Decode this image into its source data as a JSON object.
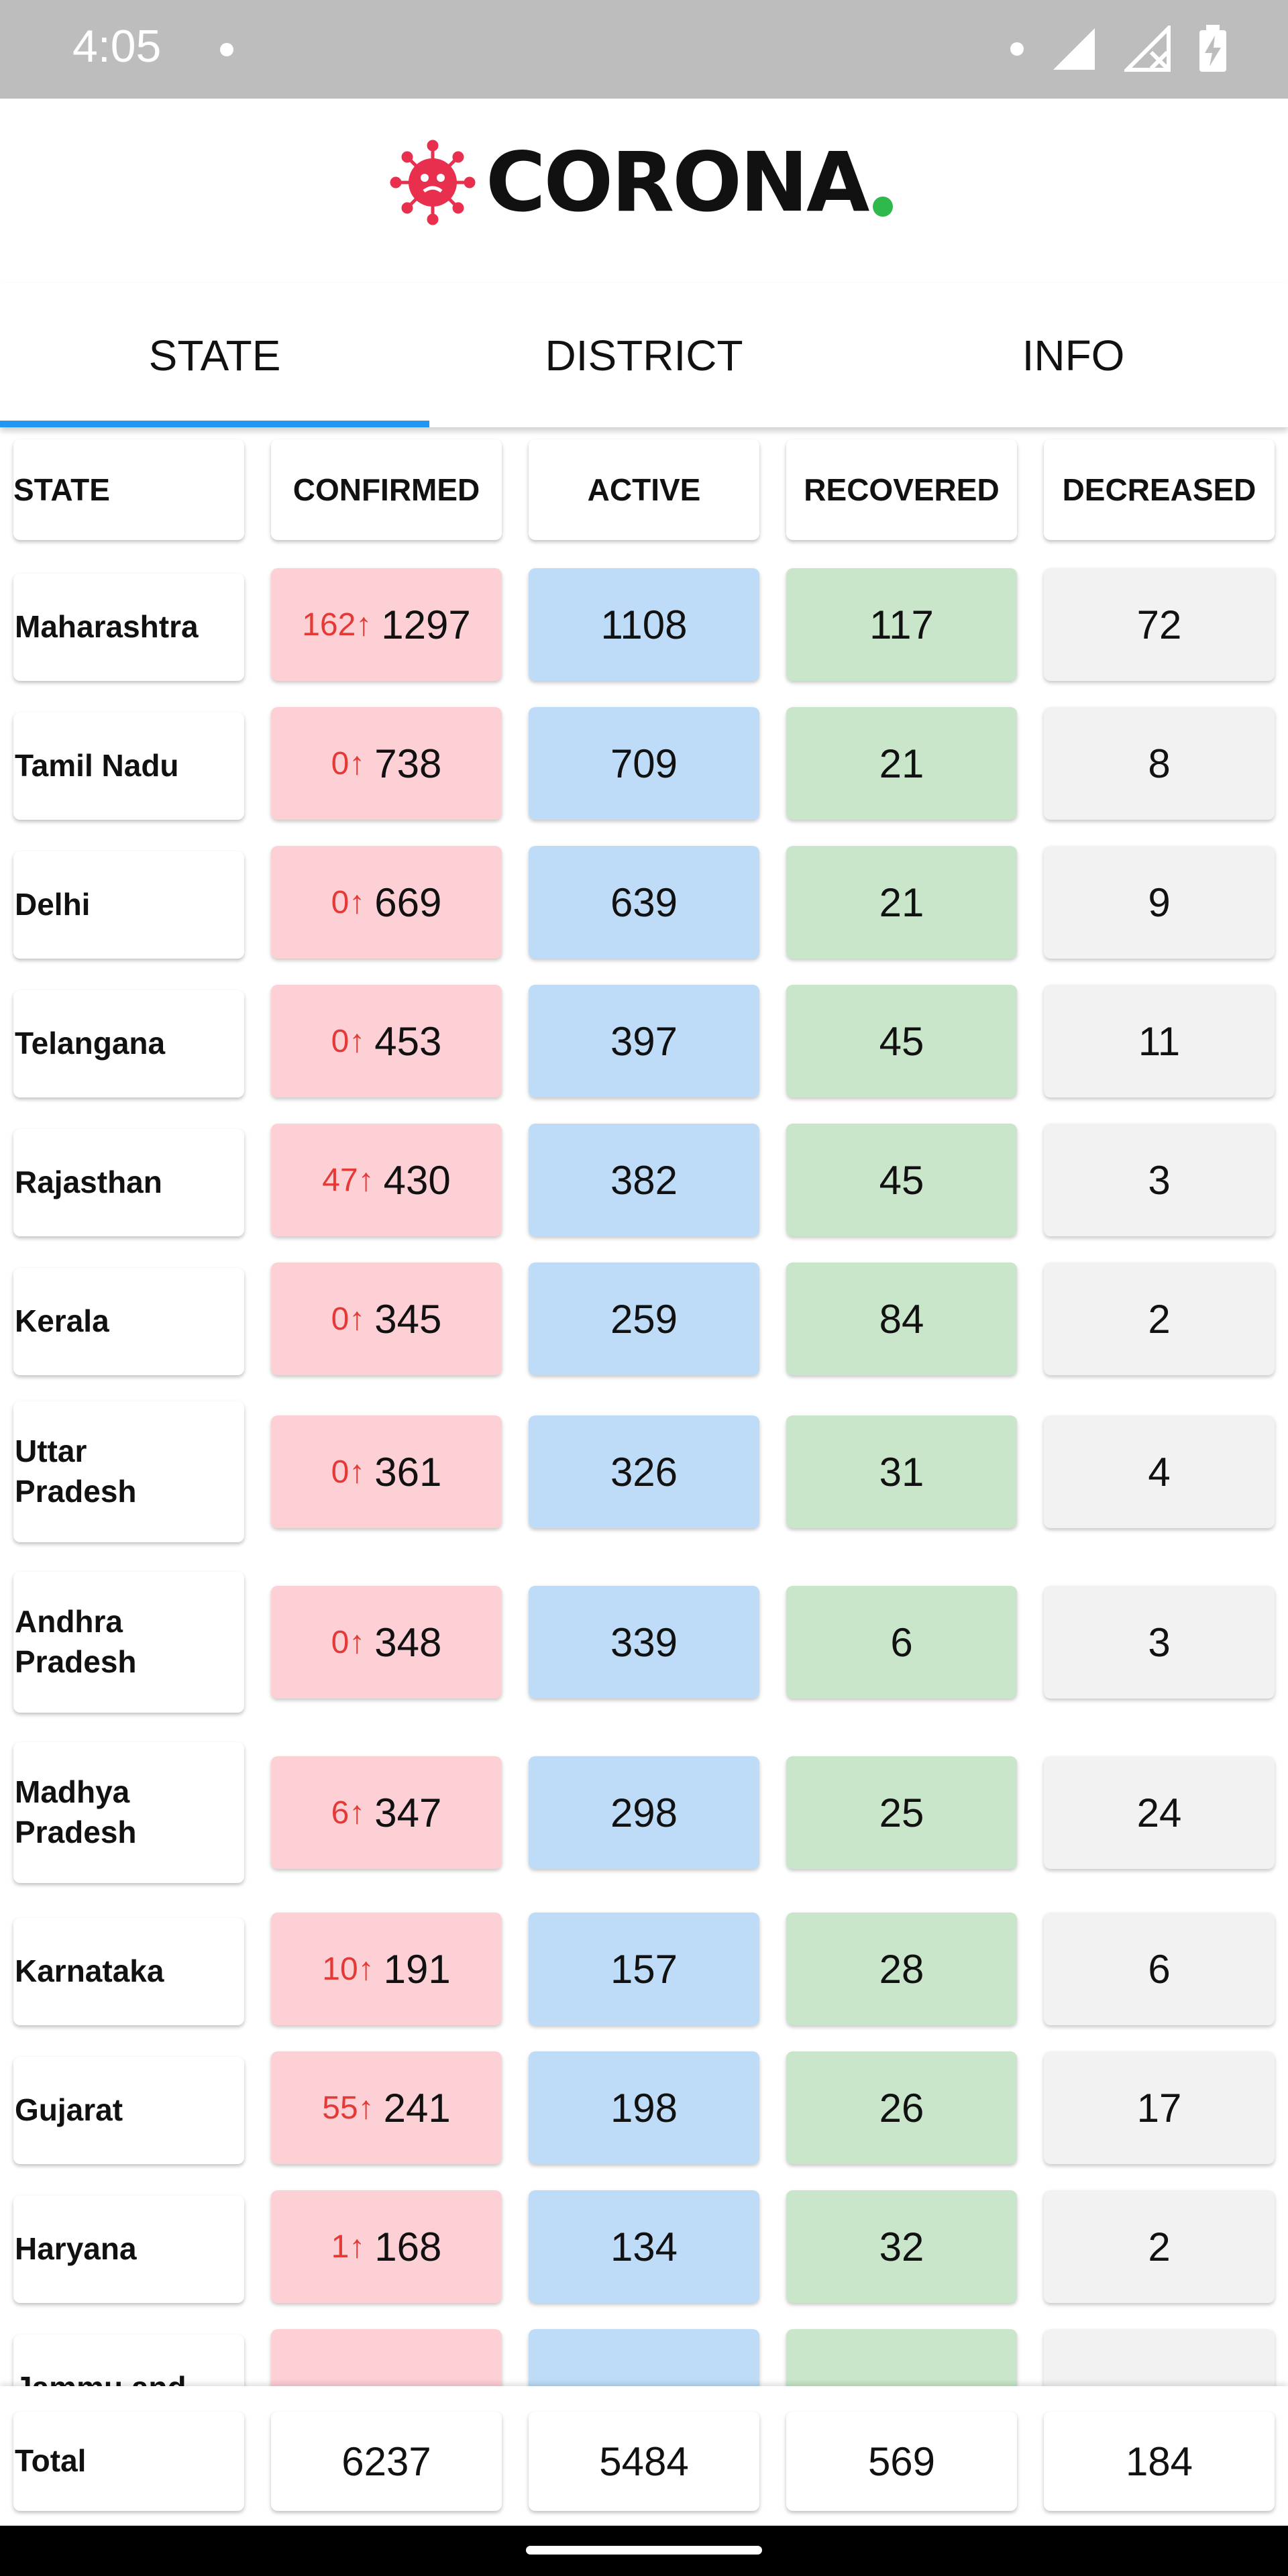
{
  "status_bar": {
    "time": "4:05"
  },
  "header": {
    "logo_text": "CORONA"
  },
  "tabs": [
    {
      "label": "STATE",
      "active": true
    },
    {
      "label": "DISTRICT",
      "active": false
    },
    {
      "label": "INFO",
      "active": false
    }
  ],
  "table": {
    "columns": [
      "STATE",
      "CONFIRMED",
      "ACTIVE",
      "RECOVERED",
      "DECREASED"
    ],
    "rows": [
      {
        "state": "Maharashtra",
        "delta": "162↑",
        "confirmed": "1297",
        "active": "1108",
        "recovered": "117",
        "decreased": "72"
      },
      {
        "state": "Tamil Nadu",
        "delta": "0↑",
        "confirmed": "738",
        "active": "709",
        "recovered": "21",
        "decreased": "8"
      },
      {
        "state": "Delhi",
        "delta": "0↑",
        "confirmed": "669",
        "active": "639",
        "recovered": "21",
        "decreased": "9"
      },
      {
        "state": "Telangana",
        "delta": "0↑",
        "confirmed": "453",
        "active": "397",
        "recovered": "45",
        "decreased": "11"
      },
      {
        "state": "Rajasthan",
        "delta": "47↑",
        "confirmed": "430",
        "active": "382",
        "recovered": "45",
        "decreased": "3"
      },
      {
        "state": "Kerala",
        "delta": "0↑",
        "confirmed": "345",
        "active": "259",
        "recovered": "84",
        "decreased": "2"
      },
      {
        "state": "Uttar Pradesh",
        "delta": "0↑",
        "confirmed": "361",
        "active": "326",
        "recovered": "31",
        "decreased": "4"
      },
      {
        "state": "Andhra Pradesh",
        "delta": "0↑",
        "confirmed": "348",
        "active": "339",
        "recovered": "6",
        "decreased": "3"
      },
      {
        "state": "Madhya Pradesh",
        "delta": "6↑",
        "confirmed": "347",
        "active": "298",
        "recovered": "25",
        "decreased": "24"
      },
      {
        "state": "Karnataka",
        "delta": "10↑",
        "confirmed": "191",
        "active": "157",
        "recovered": "28",
        "decreased": "6"
      },
      {
        "state": "Gujarat",
        "delta": "55↑",
        "confirmed": "241",
        "active": "198",
        "recovered": "26",
        "decreased": "17"
      },
      {
        "state": "Haryana",
        "delta": "1↑",
        "confirmed": "168",
        "active": "134",
        "recovered": "32",
        "decreased": "2"
      },
      {
        "state": "Jammu and",
        "delta": "",
        "confirmed": "",
        "active": "",
        "recovered": "",
        "decreased": ""
      }
    ]
  },
  "total": {
    "label": "Total",
    "confirmed": "6237",
    "active": "5484",
    "recovered": "569",
    "decreased": "184"
  },
  "colors": {
    "confirmed_bg": "#fdd0d6",
    "active_bg": "#bedcf7",
    "recovered_bg": "#c9e6ca",
    "decreased_bg": "#f2f2f2",
    "delta_text": "#e53935",
    "tab_indicator": "#2196f3",
    "logo_dot": "#2fb84b",
    "virus_icon": "#e8304e"
  }
}
